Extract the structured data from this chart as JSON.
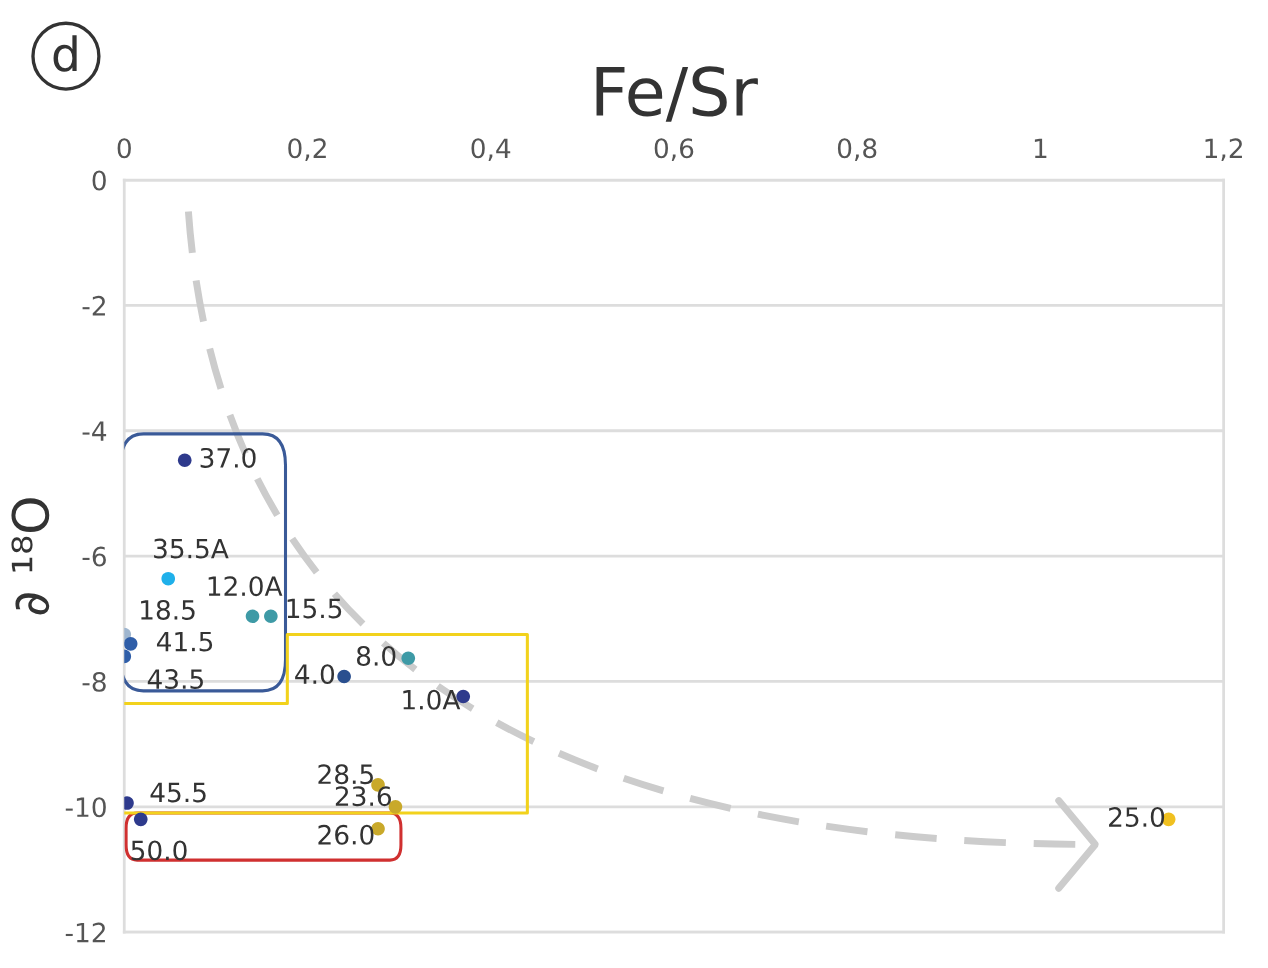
{
  "chart_data": {
    "type": "scatter",
    "xlabel": "Fe/Sr",
    "ylabel": "∂ ¹⁸O",
    "x": [
      0.066,
      0.048,
      0.14,
      0.16,
      0.0,
      0.007,
      0.0,
      0.24,
      0.31,
      0.37,
      0.003,
      0.018,
      0.277,
      0.296,
      0.277,
      1.14
    ],
    "values": [
      -4.47,
      -6.36,
      -6.96,
      -6.96,
      -7.25,
      -7.4,
      -7.6,
      -7.92,
      -7.63,
      -8.24,
      -9.94,
      -10.2,
      -9.65,
      -10.0,
      -10.35,
      -10.2
    ],
    "colors": [
      "#2e3a8c",
      "#1fb0ea",
      "#3e9aa6",
      "#3e9aa6",
      "#9fb6cf",
      "#2f5ea8",
      "#2f5ea8",
      "#2a4f8f",
      "#3e9aa6",
      "#2e3a8c",
      "#2e3a8c",
      "#2e3a8c",
      "#c9a92a",
      "#c9a92a",
      "#c9a92a",
      "#f0c020"
    ],
    "annotations": [
      "d",
      {
        "text": "37.0",
        "x": 0.066,
        "y": -4.47
      },
      {
        "text": "35.5A",
        "x": 0.048,
        "y": -6.36
      },
      {
        "text": "12.0A",
        "x": 0.14,
        "y": -6.96
      },
      {
        "text": "15.5",
        "x": 0.16,
        "y": -6.96
      },
      {
        "text": "18.5",
        "x": 0.0,
        "y": -7.25
      },
      {
        "text": "41.5",
        "x": 0.007,
        "y": -7.4
      },
      {
        "text": "43.5",
        "x": 0.0,
        "y": -7.6
      },
      {
        "text": "4.0",
        "x": 0.24,
        "y": -7.92
      },
      {
        "text": "8.0",
        "x": 0.31,
        "y": -7.63
      },
      {
        "text": "1.0A",
        "x": 0.37,
        "y": -8.24
      },
      {
        "text": "45.5",
        "x": 0.003,
        "y": -9.94
      },
      {
        "text": "50.0",
        "x": 0.018,
        "y": -10.2
      },
      {
        "text": "28.5",
        "x": 0.277,
        "y": -9.65
      },
      {
        "text": "23.6",
        "x": 0.296,
        "y": -10.0
      },
      {
        "text": "26.0",
        "x": 0.277,
        "y": -10.35
      },
      {
        "text": "25.0",
        "x": 1.14,
        "y": -10.2
      }
    ],
    "xlim": [
      0,
      1.2
    ],
    "ylim": [
      -12,
      0
    ],
    "xticks": [
      0,
      {
        "value": 0.2,
        "label": "0,2"
      },
      {
        "value": 0.4,
        "label": "0,4"
      },
      {
        "value": 0.6,
        "label": "0,6"
      },
      {
        "value": 0.8,
        "label": "0,8"
      },
      1,
      {
        "value": 1.2,
        "label": "1,2"
      }
    ],
    "yticks": [
      -12,
      -10,
      -8,
      -6,
      -4,
      -2,
      0
    ],
    "grid": "y",
    "marker": "circle"
  }
}
